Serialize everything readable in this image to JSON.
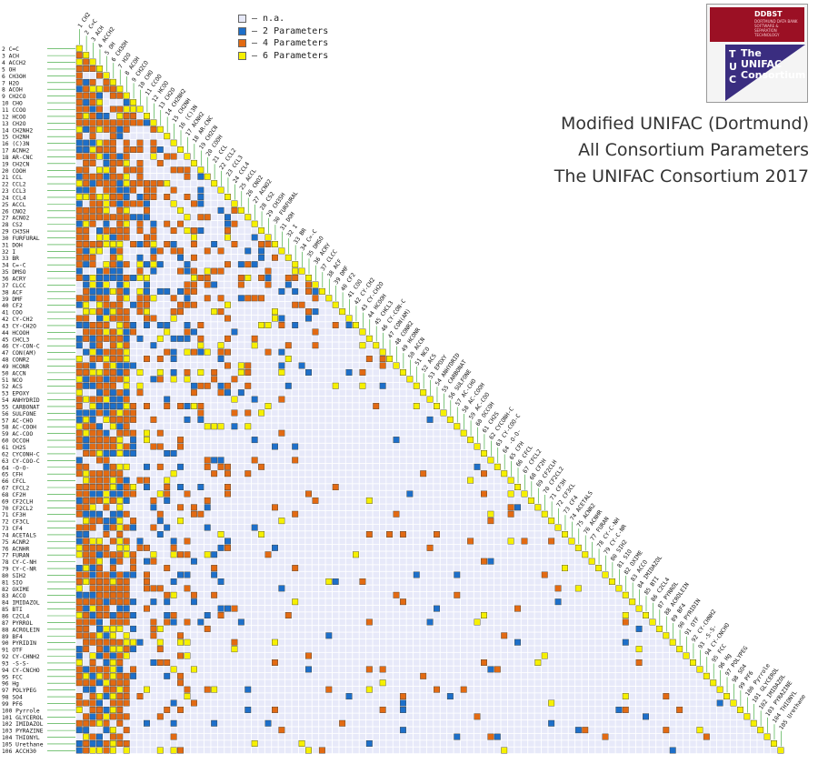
{
  "legend": [
    {
      "label": "– n.a.",
      "color": "#e7e9f9"
    },
    {
      "label": "– 2 Parameters",
      "color": "#1d6fc9"
    },
    {
      "label": "– 4 Parameters",
      "color": "#e26a12"
    },
    {
      "label": "– 6 Parameters",
      "color": "#f6f000"
    }
  ],
  "title_lines": [
    "Modified UNIFAC (Dortmund)",
    "All Consortium Parameters",
    "The UNIFAC Consortium 2017"
  ],
  "logo": {
    "brand": "DDBST",
    "brand_sub": "DORTMUND DATA BANK SOFTWARE & SEPARATION TECHNOLOGY",
    "letters": [
      "T",
      "U",
      "C"
    ],
    "words": [
      "The",
      "UNIFAC",
      "Consortium"
    ]
  },
  "chart_data": {
    "type": "heatmap",
    "title": "Modified UNIFAC (Dortmund)",
    "subtitle": "All Consortium Parameters",
    "ylabel": "",
    "xlabel": "",
    "note": "Lower-triangular interaction matrix; cell (row i, column j) colored by number of parameters",
    "groups": [
      "CH2",
      "C=C",
      "ACH",
      "ACCH2",
      "OH",
      "CH3OH",
      "H2O",
      "ACOH",
      "CH2CO",
      "CHO",
      "CCOO",
      "HCOO",
      "CH2O",
      "CH2NH2",
      "CH2NH",
      "(C)3N",
      "ACNH2",
      "AR-CNC",
      "CH2CN",
      "COOH",
      "CCL",
      "CCL2",
      "CCL3",
      "CCL4",
      "ACCL",
      "CNO2",
      "ACNO2",
      "CS2",
      "CH3SH",
      "FURFURAL",
      "DOH",
      "I",
      "BR",
      "C=-C",
      "DMSO",
      "ACRY",
      "CLCC",
      "ACF",
      "DMF",
      "CF2",
      "COO",
      "CY-CH2",
      "CY-CH2O",
      "HCOOH",
      "CHCL3",
      "CY-CON-C",
      "CON(AM)",
      "CONR2",
      "HCONR",
      "ACCN",
      "NCO",
      "ACS",
      "EPOXY",
      "ANHYDRID",
      "CARBONAT",
      "SULFONE",
      "AC-CHO",
      "AC-COOH",
      "AC-COO",
      "OCCOH",
      "CH2S",
      "CYCONH-C",
      "CY-COO-C",
      "-O-O-",
      "CFH",
      "CFCL",
      "CFCL2",
      "CF2H",
      "CF2CLH",
      "CF2CL2",
      "CF3H",
      "CF3CL",
      "CF4",
      "ACETALS",
      "ACNR2",
      "ACNHR",
      "FURAN",
      "CY-C-NH",
      "CY-C-NR",
      "SIH2",
      "SIO",
      "OXIME",
      "ACCO",
      "IMIDAZOL",
      "BTI",
      "C2CL4",
      "PYRROL",
      "ACROLEIN",
      "BF4",
      "PYRIDIN",
      "OTF",
      "CY-CHNH2",
      "-S-S-",
      "CY-CNCHO",
      "FCC",
      "Hg",
      "POLYPEG",
      "SO4",
      "PF6",
      "Pyrrole",
      "GLYCEROL",
      "IMIDAZOL",
      "PYRAZINE",
      "THIONYL",
      "Urethane",
      "ACCH30"
    ],
    "column_labels": [
      "1 CH2",
      "2 C=C",
      "3 ACH",
      "4 ACCH2",
      "5 OH",
      "6 CH3OH",
      "7 H2O",
      "8 ACOH",
      "9 CH2CO",
      "10 CHO",
      "11 CCOO",
      "12 HCOO",
      "13 CH2O",
      "14 CH2NH2",
      "15 CH2NH",
      "16 (C)3N",
      "17 ACNH2",
      "18 AR-CNC",
      "19 CH2CN",
      "20 COOH",
      "21 CCL",
      "22 CCL2",
      "23 CCL3",
      "24 CCL4",
      "25 ACCL",
      "26 CNO2",
      "27 ACNO2",
      "28 CS2",
      "29 CH3SH",
      "30 FURFURAL",
      "31 DOH",
      "32 I",
      "33 BR",
      "34 C=-C",
      "35 DMSO",
      "36 ACRY",
      "37 CLCC",
      "38 ACF",
      "39 DMF",
      "40 CF2",
      "41 COO",
      "42 CY-CH2",
      "43 CY-CH2O",
      "44 HCOOH",
      "45 CHCL3",
      "46 CY-CON-C",
      "47 CON(AM)",
      "48 CONR2",
      "49 HCONR",
      "50 ACCN",
      "51 NCO",
      "52 ACS",
      "53 EPOXY",
      "54 ANHYDRID",
      "55 CARBONAT",
      "56 SULFONE",
      "57 AC-CHO",
      "58 AC-COOH",
      "59 AC-COO",
      "60 OCCOH",
      "61 CH2S",
      "62 CYCONH-C",
      "63 CY-COO-C",
      "64 -O-O-",
      "65 CFH",
      "66 CFCL",
      "67 CFCL2",
      "68 CF2H",
      "69 CF2CLH",
      "70 CF2CL2",
      "71 CF3H",
      "72 CF3CL",
      "73 CF4",
      "74 ACETALS",
      "75 ACNR2",
      "76 ACNHR",
      "77 FURAN",
      "78 CY-C-NH",
      "79 CY-C-NR",
      "80 SIH2",
      "81 SIO",
      "82 OXIME",
      "83 ACCO",
      "84 IMIDAZOL",
      "85 BTI",
      "86 C2CL4",
      "87 PYRROL",
      "88 ACROLEIN",
      "89 BF4",
      "90 PYRIDIN",
      "91 OTF",
      "92 CY-CHNH2",
      "93 -S-S-",
      "94 CY-CNCHO",
      "95 FCC",
      "96 Hg",
      "97 POLYPEG",
      "98 SO4",
      "99 PF6",
      "100 Pyrrole",
      "101 GLYCEROL",
      "102 IMIDAZOL",
      "103 PYRAZINE",
      "104 THIONYL",
      "105 Urethane"
    ],
    "row_labels": [
      "2 C=C",
      "3 ACH",
      "4 ACCH2",
      "5 OH",
      "6 CH3OH",
      "7 H2O",
      "8 ACOH",
      "9 CH2CO",
      "10 CHO",
      "11 CCOO",
      "12 HCOO",
      "13 CH2O",
      "14 CH2NH2",
      "15 CH2NH",
      "16 (C)3N",
      "17 ACNH2",
      "18 AR-CNC",
      "19 CH2CN",
      "20 COOH",
      "21 CCL",
      "22 CCL2",
      "23 CCL3",
      "24 CCL4",
      "25 ACCL",
      "26 CNO2",
      "27 ACNO2",
      "28 CS2",
      "29 CH3SH",
      "30 FURFURAL",
      "31 DOH",
      "32 I",
      "33 BR",
      "34 C=-C",
      "35 DMSO",
      "36 ACRY",
      "37 CLCC",
      "38 ACF",
      "39 DMF",
      "40 CF2",
      "41 COO",
      "42 CY-CH2",
      "43 CY-CH2O",
      "44 HCOOH",
      "45 CHCL3",
      "46 CY-CON-C",
      "47 CON(AM)",
      "48 CONR2",
      "49 HCONR",
      "50 ACCN",
      "51 NCO",
      "52 ACS",
      "53 EPOXY",
      "54 ANHYDRID",
      "55 CARBONAT",
      "56 SULFONE",
      "57 AC-CHO",
      "58 AC-COOH",
      "59 AC-COO",
      "60 OCCOH",
      "61 CH2S",
      "62 CYCONH-C",
      "63 CY-COO-C",
      "64 -O-O-",
      "65 CFH",
      "66 CFCL",
      "67 CFCL2",
      "68 CF2H",
      "69 CF2CLH",
      "70 CF2CL2",
      "71 CF3H",
      "72 CF3CL",
      "73 CF4",
      "74 ACETALS",
      "75 ACNR2",
      "76 ACNHR",
      "77 FURAN",
      "78 CY-C-NH",
      "79 CY-C-NR",
      "80 SIH2",
      "81 SIO",
      "82 OXIME",
      "83 ACCO",
      "84 IMIDAZOL",
      "85 BTI",
      "86 C2CL4",
      "87 PYRROL",
      "88 ACROLEIN",
      "89 BF4",
      "90 PYRIDIN",
      "91 OTF",
      "92 CY-CHNH2",
      "93 -S-S-",
      "94 CY-CNCHO",
      "95 FCC",
      "96 Hg",
      "97 POLYPEG",
      "98 SO4",
      "99 PF6",
      "100 Pyrrole",
      "101 GLYCEROL",
      "102 IMIDAZOL",
      "103 PYRAZINE",
      "104 THIONYL",
      "105 Urethane",
      "106 ACCH30"
    ],
    "categories_legend": [
      "n.a.",
      "2 Parameters",
      "4 Parameters",
      "6 Parameters"
    ],
    "color_scale": {
      "0": "#e7e9f9",
      "2": "#1d6fc9",
      "4": "#e26a12",
      "6": "#f6f000"
    },
    "values_note": "values[r][c] for row r (0-based, row label index) and column c<=r; 0=n.a., 2/4/6 parameter count",
    "values": []
  }
}
